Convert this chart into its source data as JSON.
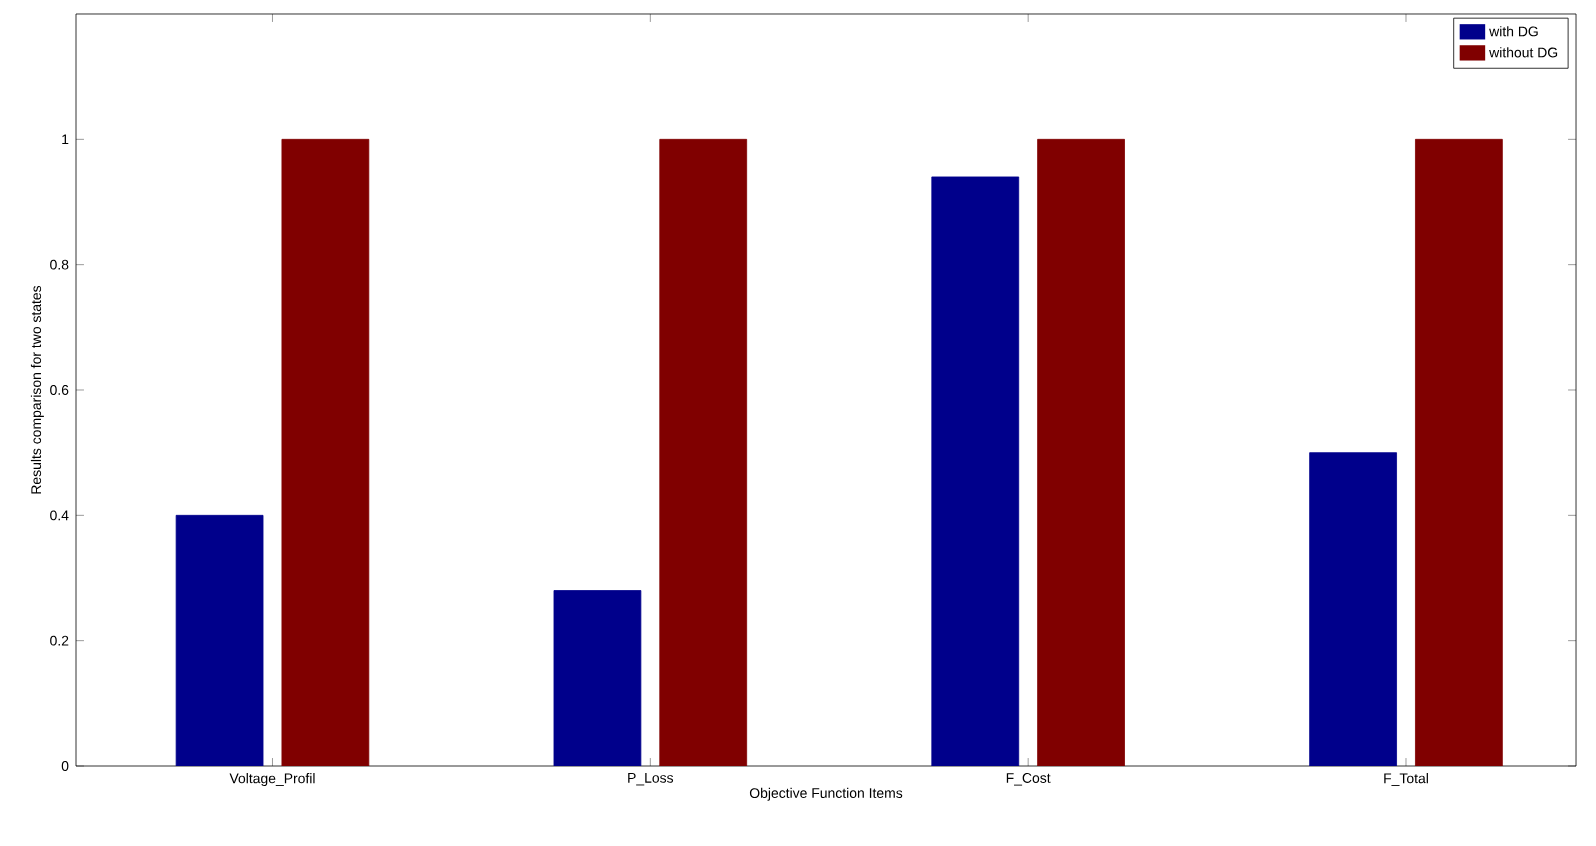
{
  "chart_data": {
    "type": "bar",
    "xlabel": "Objective Function Items",
    "ylabel": "Results comparison for two states",
    "categories": [
      "Voltage_Profil",
      "P_Loss",
      "F_Cost",
      "F_Total"
    ],
    "series": [
      {
        "name": "with DG",
        "color": "#00008b",
        "values": [
          0.4,
          0.28,
          0.94,
          0.5
        ]
      },
      {
        "name": "without DG",
        "color": "#800000",
        "values": [
          1,
          1,
          1,
          1
        ]
      }
    ],
    "ylim": [
      0,
      1.2
    ],
    "yticks": [
      0,
      0.2,
      0.4,
      0.6,
      0.8,
      1
    ],
    "grid": false,
    "legend": "top right"
  }
}
